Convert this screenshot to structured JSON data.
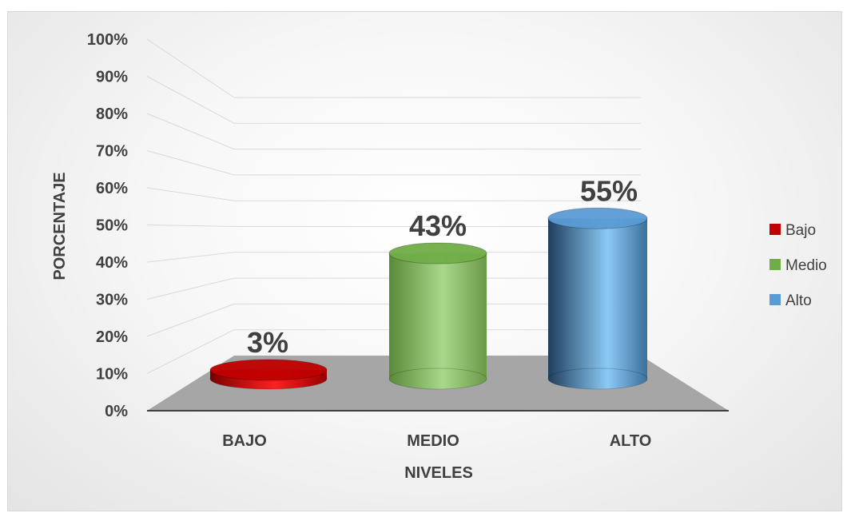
{
  "chart_data": {
    "type": "bar",
    "style": "3d-cylinder",
    "categories": [
      "BAJO",
      "MEDIO",
      "ALTO"
    ],
    "values": [
      3,
      43,
      55
    ],
    "value_format": "percent",
    "data_labels": [
      "3%",
      "43%",
      "55%"
    ],
    "xlabel": "NIVELES",
    "ylabel": "PORCENTAJE",
    "ylim": [
      0,
      100
    ],
    "yticks": [
      "0%",
      "10%",
      "20%",
      "30%",
      "40%",
      "50%",
      "60%",
      "70%",
      "80%",
      "90%",
      "100%"
    ],
    "grid": true,
    "legend": {
      "position": "right",
      "entries": [
        "Bajo",
        "Medio",
        "Alto"
      ]
    },
    "colors": [
      "#c00000",
      "#70ad47",
      "#5b9bd5"
    ]
  }
}
